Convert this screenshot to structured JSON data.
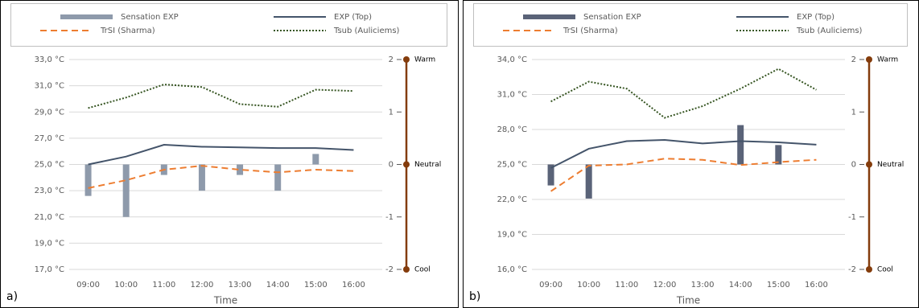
{
  "chart_data": [
    {
      "type": "bar-line",
      "panel_label": "a)",
      "xlabel": "Time",
      "categories": [
        "09:00",
        "10:00",
        "11:00",
        "12:00",
        "13:00",
        "14:00",
        "15:00",
        "16:00"
      ],
      "ylim": [
        17,
        33
      ],
      "yticks": [
        {
          "value": 17,
          "label": "17,0 °C"
        },
        {
          "value": 19,
          "label": "19,0 °C"
        },
        {
          "value": 21,
          "label": "21,0 °C"
        },
        {
          "value": 23,
          "label": "23,0 °C"
        },
        {
          "value": 25,
          "label": "25,0 °C"
        },
        {
          "value": 27,
          "label": "27,0 °C"
        },
        {
          "value": 29,
          "label": "29,0 °C"
        },
        {
          "value": 31,
          "label": "31,0 °C"
        },
        {
          "value": 33,
          "label": "33,0 °C"
        }
      ],
      "y2lim": [
        -2,
        2
      ],
      "y2ticks": [
        2,
        1,
        0,
        -1,
        -2
      ],
      "y2_scale_labels": [
        {
          "value": 2,
          "label": "Warm"
        },
        {
          "value": 0,
          "label": "Neutral"
        },
        {
          "value": -2,
          "label": "Cool"
        }
      ],
      "grid": true,
      "series": [
        {
          "name": "Sensation EXP",
          "kind": "bar",
          "axis": "y2",
          "color": "#8e9aab",
          "values": [
            -0.6,
            -1.0,
            -0.2,
            -0.5,
            -0.2,
            -0.5,
            0.2,
            0
          ]
        },
        {
          "name": "EXP (Top)",
          "kind": "line",
          "color": "#44546a",
          "dash": "solid",
          "values": [
            25.0,
            25.6,
            26.5,
            26.35,
            26.3,
            26.25,
            26.25,
            26.1
          ]
        },
        {
          "name": "TrSI (Sharma)",
          "kind": "line",
          "color": "#ed7d31",
          "dash": "dashed",
          "values": [
            23.2,
            23.8,
            24.6,
            24.9,
            24.6,
            24.4,
            24.6,
            24.5
          ]
        },
        {
          "name": "Tsub (Auliciems)",
          "kind": "line",
          "color": "#375623",
          "dash": "dotted",
          "values": [
            29.3,
            30.1,
            31.1,
            30.9,
            29.6,
            29.4,
            30.7,
            30.6
          ]
        }
      ]
    },
    {
      "type": "bar-line",
      "panel_label": "b)",
      "xlabel": "Time",
      "categories": [
        "09:00",
        "10:00",
        "11:00",
        "12:00",
        "13:00",
        "14:00",
        "15:00",
        "16:00"
      ],
      "ylim": [
        16,
        34
      ],
      "yticks": [
        {
          "value": 16,
          "label": "16,0 °C"
        },
        {
          "value": 19,
          "label": "19,0 °C"
        },
        {
          "value": 22,
          "label": "22,0 °C"
        },
        {
          "value": 25,
          "label": "25,0 °C"
        },
        {
          "value": 28,
          "label": "28,0 °C"
        },
        {
          "value": 31,
          "label": "31,0 °C"
        },
        {
          "value": 34,
          "label": "34,0 °C"
        }
      ],
      "y2lim": [
        -2,
        2
      ],
      "y2ticks": [
        2,
        1,
        0,
        -1,
        -2
      ],
      "y2_scale_labels": [
        {
          "value": 2,
          "label": "Warm"
        },
        {
          "value": 0,
          "label": "Neutral"
        },
        {
          "value": -2,
          "label": "Cool"
        }
      ],
      "grid": true,
      "series": [
        {
          "name": "Sensation EXP",
          "kind": "bar",
          "axis": "y2",
          "color": "#5a6378",
          "values": [
            -0.4,
            -0.65,
            0,
            0,
            0,
            0.75,
            0.37,
            0
          ]
        },
        {
          "name": "EXP (Top)",
          "kind": "line",
          "color": "#44546a",
          "dash": "solid",
          "values": [
            24.7,
            26.35,
            27.0,
            27.1,
            26.8,
            27.0,
            26.9,
            26.7
          ]
        },
        {
          "name": "TrSI (Sharma)",
          "kind": "line",
          "color": "#ed7d31",
          "dash": "dashed",
          "values": [
            22.7,
            24.9,
            25.0,
            25.5,
            25.4,
            24.95,
            25.2,
            25.4
          ]
        },
        {
          "name": "Tsub (Auliciems)",
          "kind": "line",
          "color": "#375623",
          "dash": "dotted",
          "values": [
            30.4,
            32.1,
            31.5,
            29.0,
            30.0,
            31.5,
            33.2,
            31.4
          ]
        }
      ]
    }
  ]
}
